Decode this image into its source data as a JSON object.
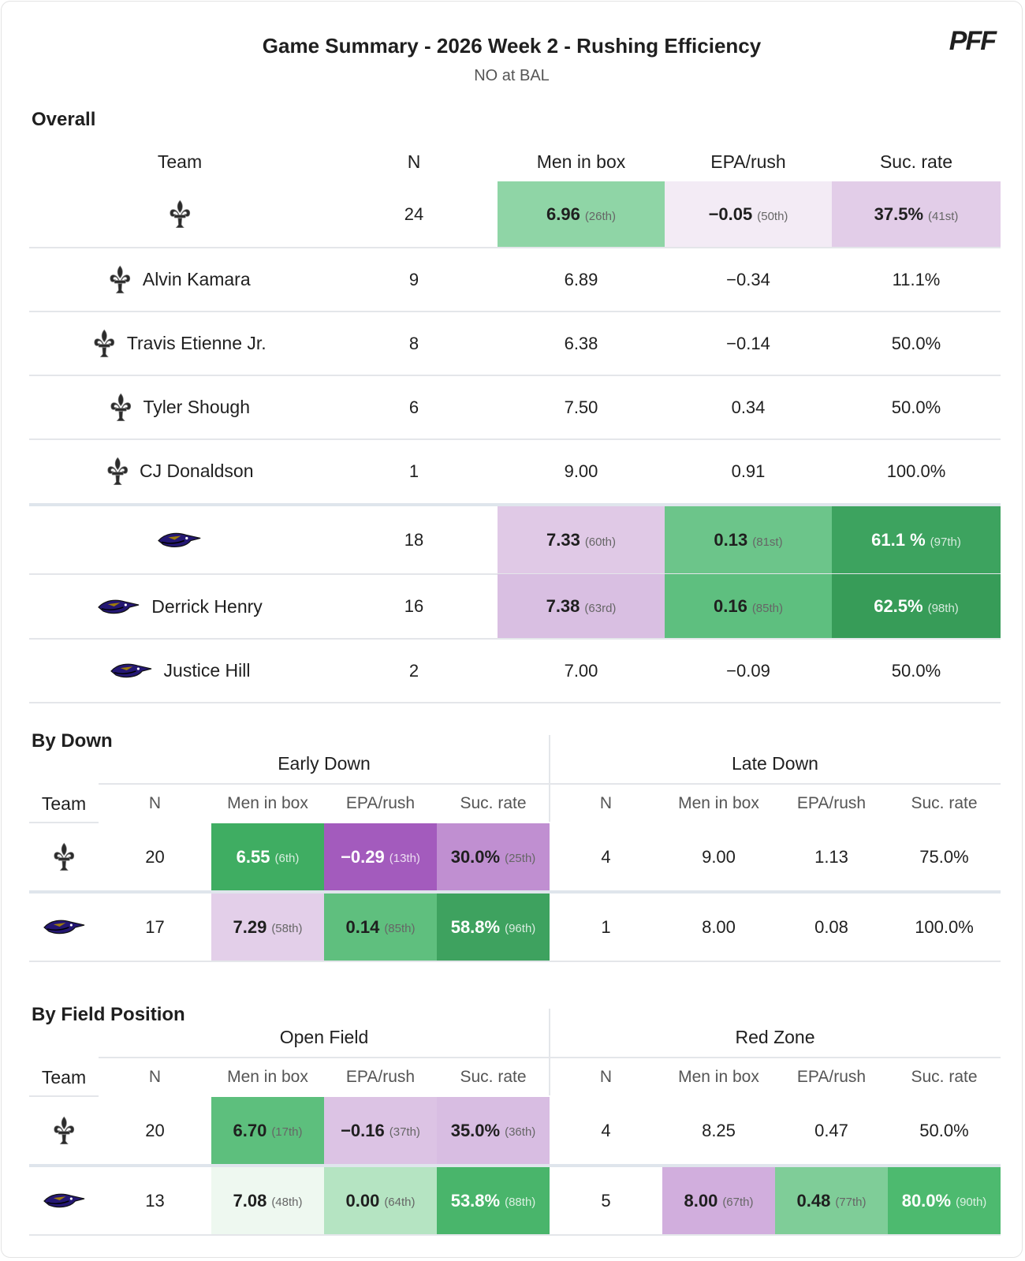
{
  "header": {
    "title": "Game Summary - 2026 Week 2 - Rushing Efficiency",
    "subtitle": "NO at BAL",
    "logo": "PFF"
  },
  "overall": {
    "title": "Overall",
    "columns": [
      "Team",
      "N",
      "Men in box",
      "EPA/rush",
      "Suc. rate"
    ],
    "rows": [
      {
        "cells": [
          "24",
          {
            "value": "6.96",
            "rank": "(26th)",
            "color": "#8fd5a6"
          },
          {
            "value": "−0.05",
            "rank": "(50th)",
            "color": "#f3ebf5"
          },
          {
            "value": "37.5%",
            "rank": "(41st)",
            "color": "#e2cde8"
          }
        ]
      },
      {
        "name": "Alvin Kamara",
        "cells": [
          "9",
          "6.89",
          "−0.34",
          "11.1%"
        ]
      },
      {
        "name": "Travis Etienne Jr.",
        "cells": [
          "8",
          "6.38",
          "−0.14",
          "50.0%"
        ]
      },
      {
        "name": "Tyler Shough",
        "cells": [
          "6",
          "7.50",
          "0.34",
          "50.0%"
        ]
      },
      {
        "name": "CJ Donaldson",
        "cells": [
          "1",
          "9.00",
          "0.91",
          "100.0%"
        ]
      },
      {
        "cells": [
          "18",
          {
            "value": "7.33",
            "rank": "(60th)",
            "color": "#e0c9e6"
          },
          {
            "value": "0.13",
            "rank": "(81st)",
            "color": "#6cc58a"
          },
          {
            "value": "61.1 %",
            "rank": "(97th)",
            "color": "#3da35f"
          }
        ]
      },
      {
        "name": "Derrick Henry",
        "cells": [
          "16",
          {
            "value": "7.38",
            "rank": "(63rd)",
            "color": "#d9bfe2"
          },
          {
            "value": "0.16",
            "rank": "(85th)",
            "color": "#5ebf7f"
          },
          {
            "value": "62.5%",
            "rank": "(98th)",
            "color": "#379c58"
          }
        ]
      },
      {
        "name": "Justice Hill",
        "cells": [
          "2",
          "7.00",
          "−0.09",
          "50.0%"
        ]
      }
    ]
  },
  "by_down": {
    "title": "By Down",
    "groups": [
      "Early Down",
      "Late Down"
    ],
    "columns": [
      "Team",
      "N",
      "Men in box",
      "EPA/rush",
      "Suc. rate",
      "N",
      "Men in box",
      "EPA/rush",
      "Suc. rate"
    ],
    "rows": [
      {
        "cells": [
          "20",
          {
            "value": "6.55",
            "rank": "(6th)",
            "color": "#3fad62"
          },
          {
            "value": "−0.29",
            "rank": "(13th)",
            "color": "#a35bbd"
          },
          {
            "value": "30.0%",
            "rank": "(25th)",
            "color": "#c08fd1"
          },
          "4",
          "9.00",
          "1.13",
          "75.0%"
        ]
      },
      {
        "cells": [
          "17",
          {
            "value": "7.29",
            "rank": "(58th)",
            "color": "#e3cfe9"
          },
          {
            "value": "0.14",
            "rank": "(85th)",
            "color": "#5fbf7e"
          },
          {
            "value": "58.8%",
            "rank": "(96th)",
            "color": "#3ea25f"
          },
          "1",
          "8.00",
          "0.08",
          "100.0%"
        ]
      }
    ]
  },
  "by_field_position": {
    "title": "By Field Position",
    "groups": [
      "Open Field",
      "Red Zone"
    ],
    "columns": [
      "Team",
      "N",
      "Men in box",
      "EPA/rush",
      "Suc. rate",
      "N",
      "Men in box",
      "EPA/rush",
      "Suc. rate"
    ],
    "rows": [
      {
        "cells": [
          "20",
          {
            "value": "6.70",
            "rank": "(17th)",
            "color": "#5dbf7d"
          },
          {
            "value": "−0.16",
            "rank": "(37th)",
            "color": "#dcc3e4"
          },
          {
            "value": "35.0%",
            "rank": "(36th)",
            "color": "#d8bde2"
          },
          "4",
          "8.25",
          "0.47",
          "50.0%"
        ]
      },
      {
        "cells": [
          "13",
          {
            "value": "7.08",
            "rank": "(48th)",
            "color": "#eef8f0"
          },
          {
            "value": "0.00",
            "rank": "(64th)",
            "color": "#b5e4c2"
          },
          {
            "value": "53.8%",
            "rank": "(88th)",
            "color": "#49b56b"
          },
          "5",
          {
            "value": "8.00",
            "rank": "(67th)",
            "color": "#d1aedd"
          },
          {
            "value": "0.48",
            "rank": "(77th)",
            "color": "#7fcd98"
          },
          {
            "value": "80.0%",
            "rank": "(90th)",
            "color": "#4dba6f"
          }
        ]
      }
    ]
  }
}
